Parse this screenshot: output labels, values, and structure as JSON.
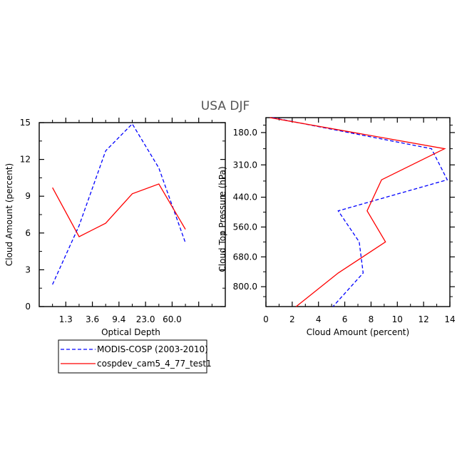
{
  "title": "USA DJF",
  "colors": {
    "observed": "#0000ff",
    "model": "#ff0000",
    "frame": "#000000"
  },
  "legend": {
    "placement": "bottom-left",
    "entries": [
      {
        "name": "MODIS-COSP (2003-2010)",
        "color": "#0000ff",
        "dash": "dashed"
      },
      {
        "name": "cospdev_cam5_4_77_test1",
        "color": "#ff0000",
        "dash": "solid"
      }
    ]
  },
  "chart_data": [
    {
      "type": "line",
      "xlabel": "Optical Depth",
      "ylabel": "Cloud Amount (percent)",
      "x_ticklabels": [
        "1.3",
        "3.6",
        "9.4",
        "23.0",
        "60.0"
      ],
      "ylim": [
        0,
        15
      ],
      "y_ticks": [
        0,
        3,
        6,
        9,
        12,
        15
      ],
      "x_bins": 7,
      "series": [
        {
          "name": "MODIS-COSP (2003-2010)",
          "color": "#0000ff",
          "dash": "dashed",
          "values": [
            1.8,
            6.6,
            12.7,
            14.9,
            11.3,
            5.2
          ]
        },
        {
          "name": "cospdev_cam5_4_77_test1",
          "color": "#ff0000",
          "dash": "solid",
          "values": [
            9.7,
            5.7,
            6.8,
            9.2,
            10.0,
            6.3
          ]
        }
      ]
    },
    {
      "type": "line",
      "xlabel": "Cloud Amount (percent)",
      "ylabel": "Cloud Top Pressure (hPa)",
      "xlim": [
        0,
        14
      ],
      "x_ticks": [
        0,
        2,
        4,
        6,
        8,
        10,
        12,
        14
      ],
      "y_ticklabels": [
        "180.0",
        "310.0",
        "440.0",
        "560.0",
        "680.0",
        "800.0"
      ],
      "y_ticks": [
        180,
        310,
        440,
        560,
        680,
        800
      ],
      "ylim_top_to_bottom": [
        120,
        880
      ],
      "grid": false,
      "series": [
        {
          "name": "MODIS-COSP (2003-2010)",
          "color": "#0000ff",
          "dash": "dashed",
          "points": [
            [
              0.5,
              120
            ],
            [
              12.6,
              245
            ],
            [
              13.8,
              370
            ],
            [
              5.5,
              495
            ],
            [
              7.1,
              620
            ],
            [
              7.4,
              745
            ],
            [
              5.1,
              880
            ]
          ]
        },
        {
          "name": "cospdev_cam5_4_77_test1",
          "color": "#ff0000",
          "dash": "solid",
          "points": [
            [
              0.3,
              120
            ],
            [
              13.6,
              245
            ],
            [
              8.8,
              370
            ],
            [
              7.7,
              495
            ],
            [
              9.1,
              620
            ],
            [
              5.5,
              745
            ],
            [
              2.3,
              880
            ]
          ]
        }
      ]
    }
  ]
}
